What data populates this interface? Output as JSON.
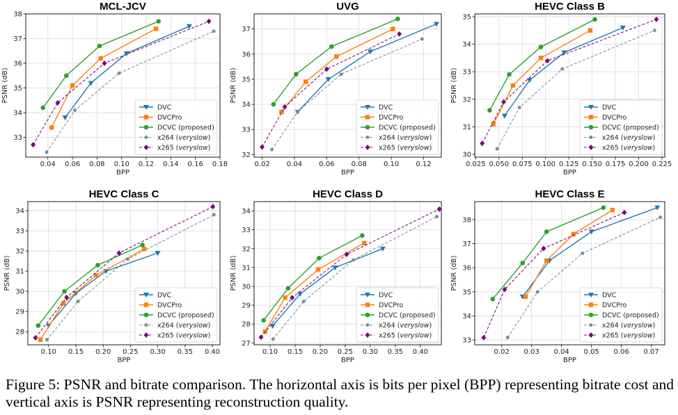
{
  "caption": "Figure 5: PSNR and bitrate comparison. The horizontal axis is bits per pixel (BPP) representing bitrate cost and vertical axis is PSNR representing reconstruction quality.",
  "series_styles": [
    {
      "color": "#1f77b4",
      "marker": "triangle-down",
      "dash": false
    },
    {
      "color": "#ff7f0e",
      "marker": "square",
      "dash": false
    },
    {
      "color": "#2ca02c",
      "marker": "circle",
      "dash": false
    },
    {
      "color": "#7f8c9a",
      "marker": "circle-small",
      "dash": true
    },
    {
      "color": "#7b0b7b",
      "marker": "diamond",
      "dash": true
    }
  ],
  "legend_labels": [
    {
      "prefix": "DVC",
      "italic": ""
    },
    {
      "prefix": "DVCPro",
      "italic": ""
    },
    {
      "prefix": "DCVC (proposed)",
      "italic": ""
    },
    {
      "prefix": "x264 (",
      "italic": "veryslow",
      "suffix": ")"
    },
    {
      "prefix": "x265 (",
      "italic": "veryslow",
      "suffix": ")"
    }
  ],
  "chart_data": [
    {
      "type": "line",
      "title": "MCL-JCV",
      "xlabel": "BPP",
      "ylabel": "PSNR (dB)",
      "xlim": [
        0.022,
        0.18
      ],
      "ylim": [
        32.2,
        38.0
      ],
      "xticks": [
        0.04,
        0.06,
        0.08,
        0.1,
        0.12,
        0.14,
        0.16,
        0.18
      ],
      "xtick_labels": [
        "0.04",
        "0.06",
        "0.08",
        "0.10",
        "0.12",
        "0.14",
        "0.16",
        "0.18"
      ],
      "yticks": [
        33,
        34,
        35,
        36,
        37,
        38
      ],
      "ytick_labels": [
        "33",
        "34",
        "35",
        "36",
        "37",
        "38"
      ],
      "grid": true,
      "legend": "lower-right",
      "series": [
        {
          "name": "DVC",
          "x": [
            0.054,
            0.075,
            0.104,
            0.155
          ],
          "y": [
            33.8,
            35.2,
            36.4,
            37.5
          ]
        },
        {
          "name": "DVCPro",
          "x": [
            0.043,
            0.06,
            0.083,
            0.128
          ],
          "y": [
            33.4,
            35.1,
            36.2,
            37.4
          ]
        },
        {
          "name": "DCVC (proposed)",
          "x": [
            0.036,
            0.055,
            0.082,
            0.13
          ],
          "y": [
            34.2,
            35.5,
            36.7,
            37.7
          ]
        },
        {
          "name": "x264 (veryslow)",
          "x": [
            0.039,
            0.062,
            0.098,
            0.175
          ],
          "y": [
            32.4,
            34.1,
            35.6,
            37.3
          ]
        },
        {
          "name": "x265 (veryslow)",
          "x": [
            0.028,
            0.048,
            0.086,
            0.171
          ],
          "y": [
            32.7,
            34.4,
            36.0,
            37.7
          ]
        }
      ]
    },
    {
      "type": "line",
      "title": "UVG",
      "xlabel": "BPP",
      "ylabel": "PSNR (dB)",
      "xlim": [
        0.015,
        0.131
      ],
      "ylim": [
        31.9,
        37.6
      ],
      "xticks": [
        0.02,
        0.04,
        0.06,
        0.08,
        0.1,
        0.12
      ],
      "xtick_labels": [
        "0.02",
        "0.04",
        "0.06",
        "0.08",
        "0.10",
        "0.12"
      ],
      "yticks": [
        32,
        33,
        34,
        35,
        36,
        37
      ],
      "ytick_labels": [
        "32",
        "33",
        "34",
        "35",
        "36",
        "37"
      ],
      "grid": true,
      "legend": "lower-right",
      "series": [
        {
          "name": "DVC",
          "x": [
            0.042,
            0.061,
            0.087,
            0.128
          ],
          "y": [
            33.7,
            35.0,
            36.1,
            37.2
          ]
        },
        {
          "name": "DVCPro",
          "x": [
            0.032,
            0.047,
            0.066,
            0.101
          ],
          "y": [
            33.7,
            34.9,
            35.9,
            37.0
          ]
        },
        {
          "name": "DCVC (proposed)",
          "x": [
            0.027,
            0.041,
            0.063,
            0.104
          ],
          "y": [
            34.0,
            35.2,
            36.3,
            37.4
          ]
        },
        {
          "name": "x264 (veryslow)",
          "x": [
            0.026,
            0.042,
            0.069,
            0.119
          ],
          "y": [
            32.2,
            33.7,
            35.2,
            36.6
          ]
        },
        {
          "name": "x265 (veryslow)",
          "x": [
            0.02,
            0.034,
            0.06,
            0.105
          ],
          "y": [
            32.3,
            33.9,
            35.4,
            36.8
          ]
        }
      ]
    },
    {
      "type": "line",
      "title": "HEVC Class B",
      "xlabel": "BPP",
      "ylabel": "PSNR (dB)",
      "xlim": [
        0.024,
        0.228
      ],
      "ylim": [
        29.9,
        35.1
      ],
      "xticks": [
        0.025,
        0.05,
        0.075,
        0.1,
        0.125,
        0.15,
        0.175,
        0.2,
        0.225
      ],
      "xtick_labels": [
        "0.025",
        "0.050",
        "0.075",
        "0.100",
        "0.125",
        "0.150",
        "0.175",
        "0.200",
        "0.225"
      ],
      "yticks": [
        30,
        31,
        32,
        33,
        34,
        35
      ],
      "ytick_labels": [
        "30",
        "31",
        "32",
        "33",
        "34",
        "35"
      ],
      "grid": true,
      "legend": "lower-right",
      "series": [
        {
          "name": "DVC",
          "x": [
            0.056,
            0.083,
            0.12,
            0.183
          ],
          "y": [
            31.4,
            32.7,
            33.7,
            34.6
          ]
        },
        {
          "name": "DVCPro",
          "x": [
            0.044,
            0.065,
            0.095,
            0.148
          ],
          "y": [
            31.1,
            32.5,
            33.5,
            34.5
          ]
        },
        {
          "name": "DCVC (proposed)",
          "x": [
            0.04,
            0.061,
            0.095,
            0.153
          ],
          "y": [
            31.6,
            32.9,
            33.9,
            34.9
          ]
        },
        {
          "name": "x264 (veryslow)",
          "x": [
            0.048,
            0.072,
            0.118,
            0.217
          ],
          "y": [
            30.2,
            31.7,
            33.1,
            34.5
          ]
        },
        {
          "name": "x265 (veryslow)",
          "x": [
            0.032,
            0.055,
            0.102,
            0.219
          ],
          "y": [
            30.4,
            31.9,
            33.4,
            34.9
          ]
        }
      ]
    },
    {
      "type": "line",
      "title": "HEVC Class C",
      "xlabel": "BPP",
      "ylabel": "PSNR (dB)",
      "xlim": [
        0.062,
        0.414
      ],
      "ylim": [
        27.35,
        34.45
      ],
      "xticks": [
        0.1,
        0.15,
        0.2,
        0.25,
        0.3,
        0.35,
        0.4
      ],
      "xtick_labels": [
        "0.10",
        "0.15",
        "0.20",
        "0.25",
        "0.30",
        "0.35",
        "0.40"
      ],
      "yticks": [
        28,
        29,
        30,
        31,
        32,
        33,
        34
      ],
      "ytick_labels": [
        "28",
        "29",
        "30",
        "31",
        "32",
        "33",
        "34"
      ],
      "grid": true,
      "legend": "lower-right",
      "series": [
        {
          "name": "DVC",
          "x": [
            0.1,
            0.15,
            0.205,
            0.3
          ],
          "y": [
            28.3,
            29.9,
            31.0,
            31.9
          ]
        },
        {
          "name": "DVCPro",
          "x": [
            0.085,
            0.127,
            0.187,
            0.275
          ],
          "y": [
            27.6,
            29.4,
            30.8,
            32.1
          ]
        },
        {
          "name": "DCVC (proposed)",
          "x": [
            0.081,
            0.129,
            0.19,
            0.272
          ],
          "y": [
            28.3,
            30.0,
            31.3,
            32.3
          ]
        },
        {
          "name": "x264 (veryslow)",
          "x": [
            0.097,
            0.154,
            0.245,
            0.403
          ],
          "y": [
            27.6,
            29.5,
            31.6,
            33.8
          ]
        },
        {
          "name": "x265 (veryslow)",
          "x": [
            0.076,
            0.133,
            0.229,
            0.401
          ],
          "y": [
            27.7,
            29.7,
            31.9,
            34.2
          ]
        }
      ]
    },
    {
      "type": "line",
      "title": "HEVC Class D",
      "xlabel": "BPP",
      "ylabel": "PSNR (dB)",
      "xlim": [
        0.068,
        0.442
      ],
      "ylim": [
        26.9,
        34.5
      ],
      "xticks": [
        0.1,
        0.15,
        0.2,
        0.25,
        0.3,
        0.35,
        0.4
      ],
      "xtick_labels": [
        "0.10",
        "0.15",
        "0.20",
        "0.25",
        "0.30",
        "0.35",
        "0.40"
      ],
      "yticks": [
        27,
        28,
        29,
        30,
        31,
        32,
        33,
        34
      ],
      "ytick_labels": [
        "27",
        "28",
        "29",
        "30",
        "31",
        "32",
        "33",
        "34"
      ],
      "grid": true,
      "legend": "lower-right",
      "series": [
        {
          "name": "DVC",
          "x": [
            0.105,
            0.16,
            0.23,
            0.325
          ],
          "y": [
            27.9,
            29.6,
            31.0,
            32.0
          ]
        },
        {
          "name": "DVCPro",
          "x": [
            0.09,
            0.13,
            0.196,
            0.288
          ],
          "y": [
            27.6,
            29.4,
            30.9,
            32.3
          ]
        },
        {
          "name": "DCVC (proposed)",
          "x": [
            0.087,
            0.136,
            0.198,
            0.284
          ],
          "y": [
            28.2,
            29.9,
            31.5,
            32.7
          ]
        },
        {
          "name": "x264 (veryslow)",
          "x": [
            0.106,
            0.167,
            0.266,
            0.433
          ],
          "y": [
            27.2,
            29.2,
            31.4,
            33.7
          ]
        },
        {
          "name": "x265 (veryslow)",
          "x": [
            0.082,
            0.144,
            0.253,
            0.438
          ],
          "y": [
            27.3,
            29.4,
            31.7,
            34.1
          ]
        }
      ]
    },
    {
      "type": "line",
      "title": "HEVC Class E",
      "xlabel": "BPP",
      "ylabel": "PSNR (dB)",
      "xlim": [
        0.011,
        0.0745
      ],
      "ylim": [
        32.8,
        38.75
      ],
      "xticks": [
        0.02,
        0.03,
        0.04,
        0.05,
        0.06,
        0.07
      ],
      "xtick_labels": [
        "0.02",
        "0.03",
        "0.04",
        "0.05",
        "0.06",
        "0.07"
      ],
      "yticks": [
        33,
        34,
        35,
        36,
        37,
        38
      ],
      "ytick_labels": [
        "33",
        "34",
        "35",
        "36",
        "37",
        "38"
      ],
      "grid": true,
      "legend": "lower-right",
      "series": [
        {
          "name": "DVC",
          "x": [
            0.027,
            0.036,
            0.05,
            0.072
          ],
          "y": [
            34.8,
            36.3,
            37.5,
            38.5
          ]
        },
        {
          "name": "DVCPro",
          "x": [
            0.028,
            0.035,
            0.044,
            0.057
          ],
          "y": [
            34.8,
            36.3,
            37.4,
            38.4
          ]
        },
        {
          "name": "DCVC (proposed)",
          "x": [
            0.017,
            0.027,
            0.035,
            0.054
          ],
          "y": [
            34.7,
            36.2,
            37.5,
            38.5
          ]
        },
        {
          "name": "x264 (veryslow)",
          "x": [
            0.022,
            0.032,
            0.047,
            0.073
          ],
          "y": [
            33.1,
            35.0,
            36.6,
            38.1
          ]
        },
        {
          "name": "x265 (veryslow)",
          "x": [
            0.014,
            0.021,
            0.034,
            0.061
          ],
          "y": [
            33.1,
            35.1,
            36.8,
            38.3
          ]
        }
      ]
    }
  ]
}
